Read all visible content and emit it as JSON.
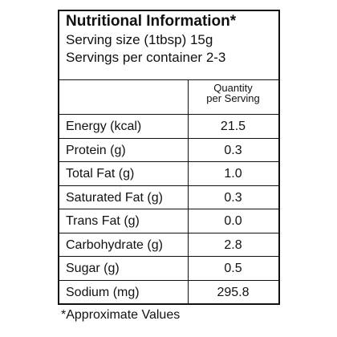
{
  "header": {
    "title": "Nutritional Information*",
    "serving_size": "Serving size (1tbsp) 15g",
    "servings": "Servings per container 2-3"
  },
  "table": {
    "column_header": [
      "Quantity",
      "per Serving"
    ],
    "rows": [
      [
        "Energy (kcal)",
        "21.5"
      ],
      [
        "Protein (g)",
        "0.3"
      ],
      [
        "Total Fat (g)",
        "1.0"
      ],
      [
        "Saturated Fat (g)",
        "0.3"
      ],
      [
        "Trans Fat (g)",
        "0.0"
      ],
      [
        "Carbohydrate (g)",
        "2.8"
      ],
      [
        "Sugar (g)",
        "0.5"
      ],
      [
        "Sodium (mg)",
        "295.8"
      ]
    ]
  },
  "footnote": "*Approximate Values"
}
